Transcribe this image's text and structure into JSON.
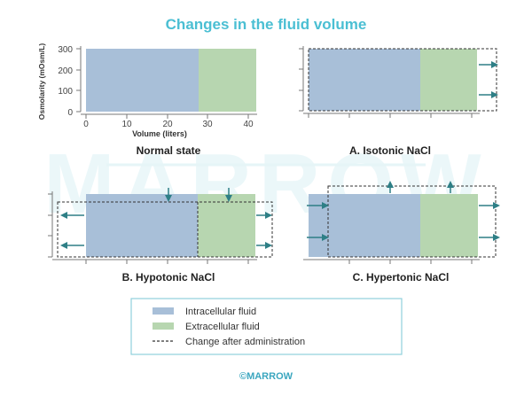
{
  "title": "Changes in the fluid volume",
  "axes": {
    "y_label": "Osmolarity (mOsm/L)",
    "x_label": "Volume (liters)",
    "y_ticks": [
      "300",
      "200",
      "100",
      "0"
    ],
    "x_ticks": [
      "0",
      "10",
      "20",
      "30",
      "40"
    ]
  },
  "panels": {
    "normal": "Normal state",
    "isotonic": "A. Isotonic NaCl",
    "hypotonic": "B. Hypotonic NaCl",
    "hypertonic": "C. Hypertonic NaCl"
  },
  "legend": {
    "intracellular": "Intracellular fluid",
    "extracellular": "Extracellular fluid",
    "change": "Change after administration"
  },
  "watermark": "MARROW",
  "footer": "©MARROW",
  "colors": {
    "title": "#4bbfd3",
    "intracellular": "#a8bfd8",
    "extracellular": "#b7d6b0",
    "arrow": "#2e7f86",
    "axis": "#777777",
    "legend_border": "#8fd0dc",
    "footer": "#3aa6bf"
  },
  "chart_data": {
    "type": "area",
    "xlabel": "Volume (liters)",
    "ylabel": "Osmolarity (mOsm/L)",
    "xlim": [
      0,
      42
    ],
    "ylim": [
      0,
      300
    ],
    "normal_state": {
      "intracellular_volume_range": [
        0,
        28
      ],
      "extracellular_volume_range": [
        28,
        42
      ],
      "osmolarity": 300
    }
  }
}
